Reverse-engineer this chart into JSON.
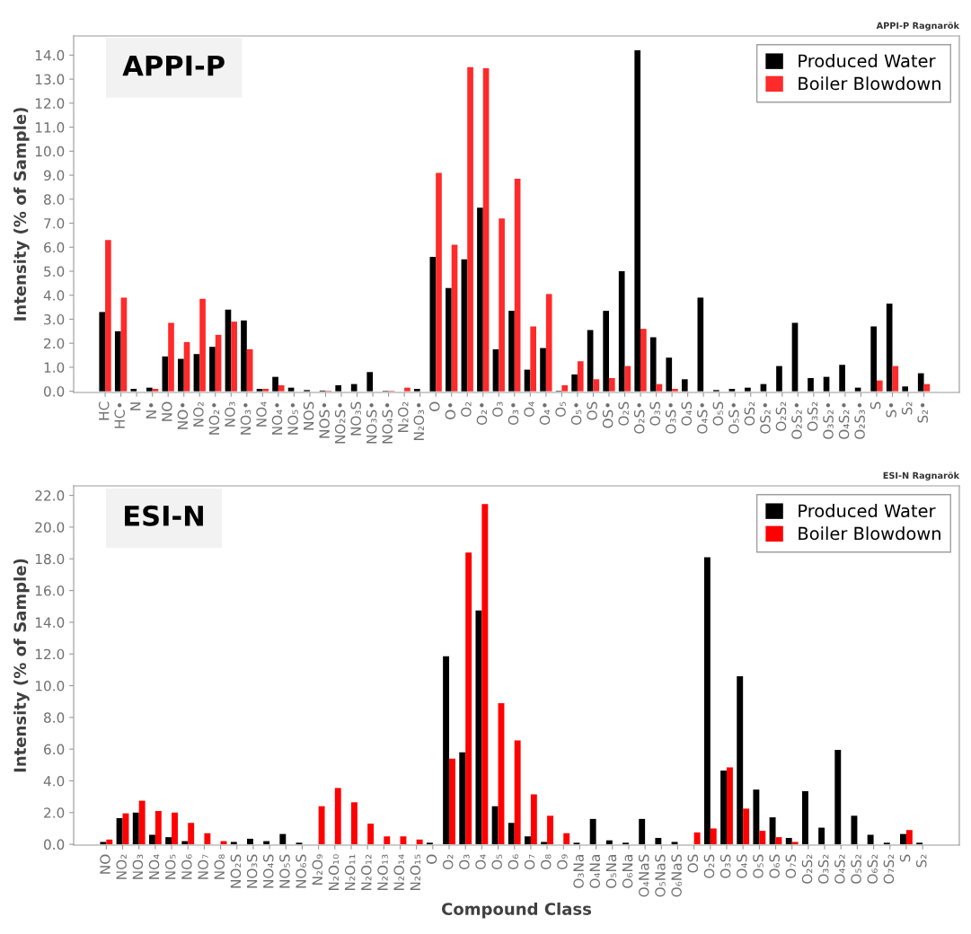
{
  "chart_data": [
    {
      "type": "bar",
      "title": "APPI-P",
      "subtitle": "APPI-P Ragnarök",
      "ylabel": "Intensity (% of Sample)",
      "categories": [
        "HC",
        "HC•",
        "N",
        "N•",
        "NO",
        "NO•",
        "NO₂",
        "NO₂•",
        "NO₃",
        "NO₃•",
        "NO₄",
        "NO₄•",
        "NO₅•",
        "NOS",
        "NOS•",
        "NO₂S•",
        "NO₃S",
        "NO₃S•",
        "NO₄S•",
        "N₂O₂",
        "N₂O₃•",
        "O",
        "O•",
        "O₂",
        "O₂•",
        "O₃",
        "O₃•",
        "O₄",
        "O₄•",
        "O₅",
        "O₅•",
        "OS",
        "OS•",
        "O₂S",
        "O₂S•",
        "O₃S",
        "O₃S•",
        "O₄S",
        "O₄S•",
        "O₅S",
        "O₅S•",
        "OS₂",
        "OS₂•",
        "O₂S₂",
        "O₂S₂•",
        "O₃S₂",
        "O₃S₂•",
        "O₄S₂•",
        "O₂S₃•",
        "S",
        "S•",
        "S₂",
        "S₂•"
      ],
      "series": [
        {
          "name": "Produced Water",
          "color": "#000000",
          "values": [
            3.3,
            2.5,
            0.1,
            0.15,
            1.45,
            1.35,
            1.55,
            1.85,
            3.4,
            2.95,
            0.1,
            0.6,
            0.15,
            0.05,
            0.03,
            0.25,
            0.3,
            0.8,
            0.02,
            0,
            0.1,
            5.6,
            4.3,
            5.5,
            7.65,
            1.75,
            3.35,
            0.9,
            1.8,
            0.02,
            0.7,
            2.55,
            3.35,
            5.0,
            14.2,
            2.25,
            1.4,
            0.5,
            3.9,
            0.05,
            0.1,
            0.15,
            0.3,
            1.05,
            2.85,
            0.55,
            0.6,
            1.1,
            0.15,
            2.7,
            3.65,
            0.2,
            0.75
          ]
        },
        {
          "name": "Boiler Blowdown",
          "color": "#ff2a2a",
          "values": [
            6.3,
            3.9,
            0,
            0.1,
            2.85,
            2.05,
            3.85,
            2.35,
            2.9,
            1.75,
            0.1,
            0.25,
            0,
            0,
            0.02,
            0,
            0,
            0,
            0.02,
            0.15,
            0,
            9.1,
            6.1,
            13.5,
            13.45,
            7.2,
            8.85,
            2.7,
            4.05,
            0.25,
            1.25,
            0.5,
            0.55,
            1.05,
            2.6,
            0.3,
            0.1,
            0,
            0,
            0,
            0,
            0,
            0,
            0,
            0,
            0,
            0,
            0,
            0,
            0.45,
            1.05,
            0,
            0.3
          ]
        }
      ],
      "ylim": [
        -0.05,
        14.8
      ],
      "yticks": [
        {
          "value": 0,
          "label": "0.0"
        },
        {
          "value": 1,
          "label": "1.0"
        },
        {
          "value": 2,
          "label": "2.0"
        },
        {
          "value": 3,
          "label": "3.0"
        },
        {
          "value": 4,
          "label": "4.0"
        },
        {
          "value": 5,
          "label": "5.0"
        },
        {
          "value": 6,
          "label": "6.0"
        },
        {
          "value": 7,
          "label": "7.0"
        },
        {
          "value": 8,
          "label": "8.0"
        },
        {
          "value": 9,
          "label": "9.0"
        },
        {
          "value": 10,
          "label": "10.0"
        },
        {
          "value": 11,
          "label": "11.0"
        },
        {
          "value": 12,
          "label": "12.0"
        },
        {
          "value": 13,
          "label": "13.0"
        },
        {
          "value": 14,
          "label": "14.0"
        }
      ],
      "grid": false,
      "legend": "top right"
    },
    {
      "type": "bar",
      "title": "ESI-N",
      "subtitle": "ESI-N Ragnarök",
      "ylabel": "Intensity (% of Sample)",
      "xlabel": "Compound Class",
      "categories": [
        "NO",
        "NO₂",
        "NO₃",
        "NO₄",
        "NO₅",
        "NO₆",
        "NO₇",
        "NO₈",
        "NO₂S",
        "NO₃S",
        "NO₄S",
        "NO₅S",
        "NO₆S",
        "N₂O₉",
        "N₂O₁₀",
        "N₂O₁₁",
        "N₂O₁₂",
        "N₂O₁₃",
        "N₂O₁₄",
        "N₂O₁₅",
        "O",
        "O₂",
        "O₃",
        "O₄",
        "O₅",
        "O₆",
        "O₇",
        "O₈",
        "O₉",
        "O₃Na",
        "O₄Na",
        "O₅Na",
        "O₆Na",
        "O₄NaS",
        "O₅NaS",
        "O₆NaS",
        "OS",
        "O₂S",
        "O₃S",
        "O₄S",
        "O₅S",
        "O₆S",
        "O₇S",
        "O₂S₂",
        "O₃S₂",
        "O₄S₂",
        "O₅S₂",
        "O₆S₂",
        "O₇S₂",
        "S",
        "S₂"
      ],
      "series": [
        {
          "name": "Produced Water",
          "color": "#000000",
          "values": [
            0.15,
            1.65,
            2.0,
            0.6,
            0.45,
            0.2,
            0,
            0,
            0.15,
            0.35,
            0.2,
            0.65,
            0.1,
            0,
            0,
            0,
            0,
            0,
            0,
            0,
            0.1,
            11.85,
            5.8,
            14.75,
            2.4,
            1.35,
            0.5,
            0.15,
            0,
            0.1,
            1.6,
            0.25,
            0.1,
            1.6,
            0.4,
            0.15,
            0,
            18.1,
            4.65,
            10.6,
            3.45,
            1.7,
            0.4,
            3.35,
            1.05,
            5.95,
            1.8,
            0.6,
            0.1,
            0.65,
            0.1
          ]
        },
        {
          "name": "Boiler Blowdown",
          "color": "#ff0000",
          "values": [
            0.3,
            1.95,
            2.75,
            2.1,
            2.0,
            1.35,
            0.7,
            0.2,
            0,
            0,
            0,
            0,
            0,
            2.4,
            3.55,
            2.65,
            1.3,
            0.5,
            0.5,
            0.3,
            0,
            5.4,
            18.4,
            21.45,
            8.9,
            6.55,
            3.15,
            1.8,
            0.7,
            0,
            0,
            0,
            0,
            0,
            0,
            0,
            0.75,
            1.0,
            4.85,
            2.25,
            0.85,
            0.45,
            0.15,
            0,
            0,
            0,
            0,
            0,
            0,
            0.9,
            0
          ]
        }
      ],
      "ylim": [
        -0.05,
        22.6
      ],
      "yticks": [
        {
          "value": 0,
          "label": "0.0"
        },
        {
          "value": 2,
          "label": "2.0"
        },
        {
          "value": 4,
          "label": "4.0"
        },
        {
          "value": 6,
          "label": "6.0"
        },
        {
          "value": 8,
          "label": "8.0"
        },
        {
          "value": 10,
          "label": "10.0"
        },
        {
          "value": 12,
          "label": "12.0"
        },
        {
          "value": 14,
          "label": "14.0"
        },
        {
          "value": 16,
          "label": "16.0"
        },
        {
          "value": 18,
          "label": "18.0"
        },
        {
          "value": 20,
          "label": "20.0"
        },
        {
          "value": 22,
          "label": "22.0"
        }
      ],
      "grid": false,
      "legend": "top right"
    }
  ]
}
